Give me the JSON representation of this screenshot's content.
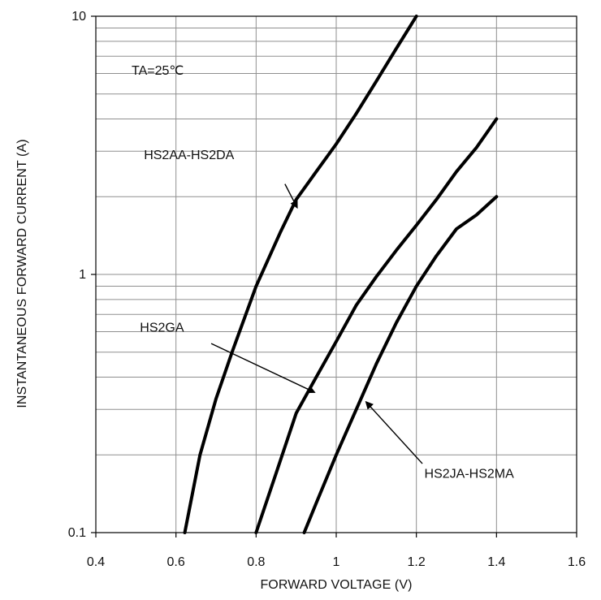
{
  "chart_data": {
    "type": "line",
    "xlabel": "FORWARD VOLTAGE (V)",
    "ylabel": "INSTANTANEOUS FORWARD CURRENT (A)",
    "xlim": [
      0.4,
      1.6
    ],
    "ylim": [
      0.1,
      10
    ],
    "yscale": "log",
    "grid": true,
    "x_ticks": [
      0.4,
      0.6,
      0.8,
      1,
      1.2,
      1.4,
      1.6
    ],
    "x_tick_labels": [
      "0.4",
      "0.6",
      "0.8",
      "1",
      "1.2",
      "1.4",
      "1.6"
    ],
    "y_ticks": [
      0.1,
      1,
      10
    ],
    "y_tick_labels": [
      "0.1",
      "1",
      "10"
    ],
    "condition_label": "TA=25℃",
    "series": [
      {
        "name": "HS2AA-HS2DA",
        "x": [
          0.622,
          0.66,
          0.7,
          0.74,
          0.8,
          0.86,
          0.9,
          0.95,
          1.0,
          1.05,
          1.1,
          1.15,
          1.2
        ],
        "y": [
          0.1,
          0.2,
          0.33,
          0.5,
          0.9,
          1.45,
          1.95,
          2.5,
          3.2,
          4.2,
          5.6,
          7.5,
          10.0
        ]
      },
      {
        "name": "HS2GA",
        "x": [
          0.8,
          0.85,
          0.9,
          0.95,
          1.0,
          1.05,
          1.1,
          1.15,
          1.2,
          1.25,
          1.3,
          1.35,
          1.4
        ],
        "y": [
          0.1,
          0.17,
          0.29,
          0.4,
          0.55,
          0.76,
          0.98,
          1.24,
          1.55,
          1.95,
          2.5,
          3.1,
          4.0
        ]
      },
      {
        "name": "HS2JA-HS2MA",
        "x": [
          0.92,
          0.95,
          1.0,
          1.05,
          1.1,
          1.15,
          1.2,
          1.25,
          1.3,
          1.35,
          1.4
        ],
        "y": [
          0.1,
          0.13,
          0.2,
          0.3,
          0.45,
          0.65,
          0.9,
          1.18,
          1.5,
          1.7,
          2.0
        ]
      }
    ],
    "annotations": [
      {
        "text": "HS2AA-HS2DA",
        "series": "HS2AA-HS2DA",
        "text_position": [
          0.52,
          2.8
        ],
        "arrow_start": [
          0.872,
          2.24
        ],
        "arrow_end": [
          0.902,
          1.82
        ]
      },
      {
        "text": "HS2GA",
        "series": "HS2GA",
        "text_position": [
          0.51,
          0.6
        ],
        "arrow_start": [
          0.688,
          0.54
        ],
        "arrow_end": [
          0.945,
          0.35
        ]
      },
      {
        "text": "HS2JA-HS2MA",
        "series": "HS2JA-HS2MA",
        "text_position": [
          1.22,
          0.163
        ],
        "arrow_start": [
          1.215,
          0.185
        ],
        "arrow_end": [
          1.075,
          0.32
        ]
      }
    ]
  }
}
